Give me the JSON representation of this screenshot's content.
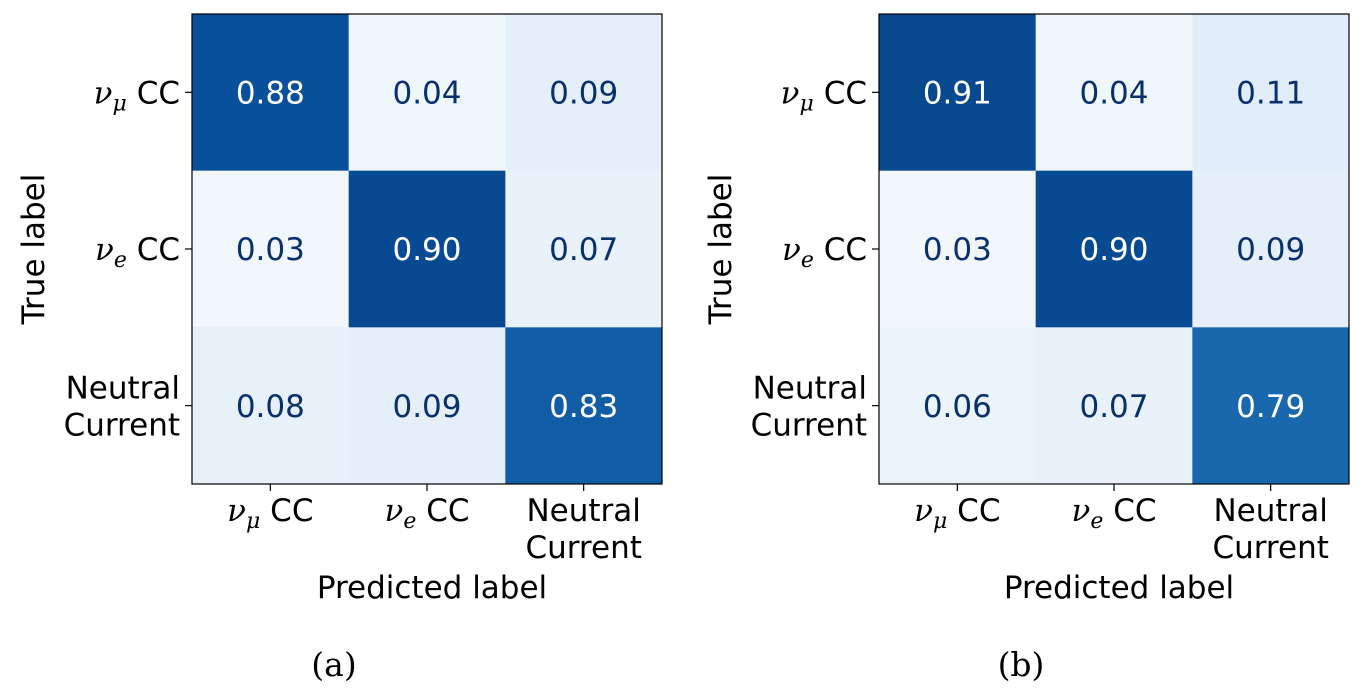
{
  "chart_data": [
    {
      "type": "heatmap",
      "caption": "(a)",
      "xlabel": "Predicted label",
      "ylabel": "True label",
      "categories": [
        {
          "name": "nu-mu-cc",
          "lines": [
            [
              "ν",
              "μ",
              " CC"
            ]
          ]
        },
        {
          "name": "nu-e-cc",
          "lines": [
            [
              "ν",
              "e",
              " CC"
            ]
          ]
        },
        {
          "name": "neutral-current",
          "lines": [
            [
              "Neutral"
            ],
            [
              "Current"
            ]
          ]
        }
      ],
      "matrix": [
        [
          0.88,
          0.04,
          0.09
        ],
        [
          0.03,
          0.9,
          0.07
        ],
        [
          0.08,
          0.09,
          0.83
        ]
      ],
      "value_range": [
        0,
        1
      ],
      "colormap": "Blues",
      "colors": {
        "low": "#f7fbff",
        "high": "#08306b"
      },
      "grid": false
    },
    {
      "type": "heatmap",
      "caption": "(b)",
      "xlabel": "Predicted label",
      "ylabel": "True label",
      "categories": [
        {
          "name": "nu-mu-cc",
          "lines": [
            [
              "ν",
              "μ",
              " CC"
            ]
          ]
        },
        {
          "name": "nu-e-cc",
          "lines": [
            [
              "ν",
              "e",
              " CC"
            ]
          ]
        },
        {
          "name": "neutral-current",
          "lines": [
            [
              "Neutral"
            ],
            [
              "Current"
            ]
          ]
        }
      ],
      "matrix": [
        [
          0.91,
          0.04,
          0.11
        ],
        [
          0.03,
          0.9,
          0.09
        ],
        [
          0.06,
          0.07,
          0.79
        ]
      ],
      "value_range": [
        0,
        1
      ],
      "colormap": "Blues",
      "colors": {
        "low": "#f7fbff",
        "high": "#08306b"
      },
      "grid": false
    }
  ]
}
